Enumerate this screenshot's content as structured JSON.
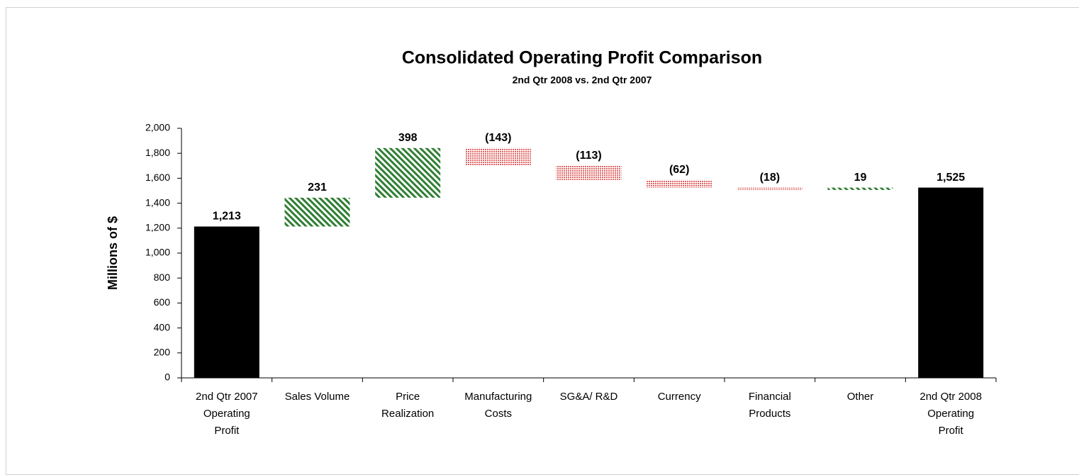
{
  "chart_data": {
    "type": "waterfall",
    "title": "Consolidated Operating Profit Comparison",
    "subtitle": "2nd Qtr 2008 vs. 2nd Qtr 2007",
    "y_label": "Millions of $",
    "categories": [
      "2nd Qtr 2007 Operating Profit",
      "Sales Volume",
      "Price Realization",
      "Manufacturing Costs",
      "SG&A/ R&D",
      "Currency",
      "Financial Products",
      "Other",
      "2nd Qtr 2008 Operating Profit"
    ],
    "values": [
      1213,
      231,
      398,
      -143,
      -113,
      -62,
      -18,
      19,
      1525
    ],
    "value_labels": [
      "1,213",
      "231",
      "398",
      "(143)",
      "(113)",
      "(62)",
      "(18)",
      "19",
      "1,525"
    ],
    "colors": {
      "total": "#000000",
      "increase": "#2e7d32",
      "decrease": "#e06666"
    },
    "ylim": [
      0,
      2000
    ],
    "yticks": [
      0,
      200,
      400,
      600,
      800,
      {
        "value": 1000,
        "label": "1,000"
      },
      {
        "value": 1200,
        "label": "1,200"
      },
      {
        "value": 1400,
        "label": "1,400"
      },
      {
        "value": 1600,
        "label": "1,600"
      },
      {
        "value": 1800,
        "label": "1,800"
      },
      {
        "value": 2000,
        "label": "2,000"
      }
    ]
  }
}
